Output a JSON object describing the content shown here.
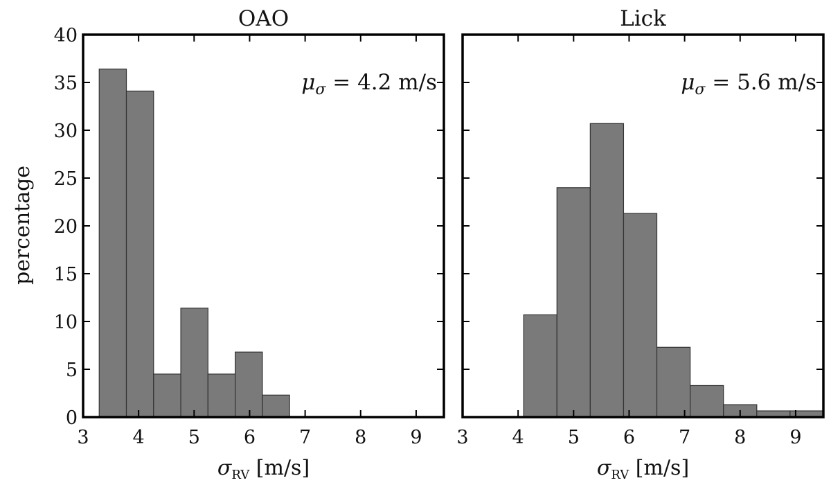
{
  "figure": {
    "ylabel": "percentage",
    "xlabel_main": "σ",
    "xlabel_sub": "RV",
    "xlabel_unit": " [m/s]"
  },
  "chart_data": [
    {
      "type": "bar",
      "title": "OAO",
      "annotation": {
        "symbol": "μ",
        "sub": "σ",
        "text": " = 4.2 m/s"
      },
      "xlim": [
        3,
        9.5
      ],
      "ylim": [
        0,
        40
      ],
      "xticks": [
        3,
        4,
        5,
        6,
        7,
        8,
        9
      ],
      "yticks": [
        0,
        5,
        10,
        15,
        20,
        25,
        30,
        35,
        40
      ],
      "bin_width": 0.49,
      "bin_starts": [
        3.29,
        3.78,
        4.27,
        4.76,
        5.25,
        5.74,
        6.23
      ],
      "values": [
        36.4,
        34.1,
        4.5,
        11.4,
        4.5,
        6.8,
        2.3
      ]
    },
    {
      "type": "bar",
      "title": "Lick",
      "annotation": {
        "symbol": "μ",
        "sub": "σ",
        "text": " = 5.6 m/s"
      },
      "xlim": [
        3,
        9.5
      ],
      "ylim": [
        0,
        40
      ],
      "xticks": [
        3,
        4,
        5,
        6,
        7,
        8,
        9
      ],
      "yticks": [],
      "bin_width": 0.6,
      "bin_starts": [
        4.1,
        4.7,
        5.3,
        5.9,
        6.5,
        7.1,
        7.7,
        8.3,
        8.9
      ],
      "values": [
        10.7,
        24.0,
        30.7,
        21.3,
        7.3,
        3.3,
        1.3,
        0.65,
        0.65
      ]
    }
  ]
}
